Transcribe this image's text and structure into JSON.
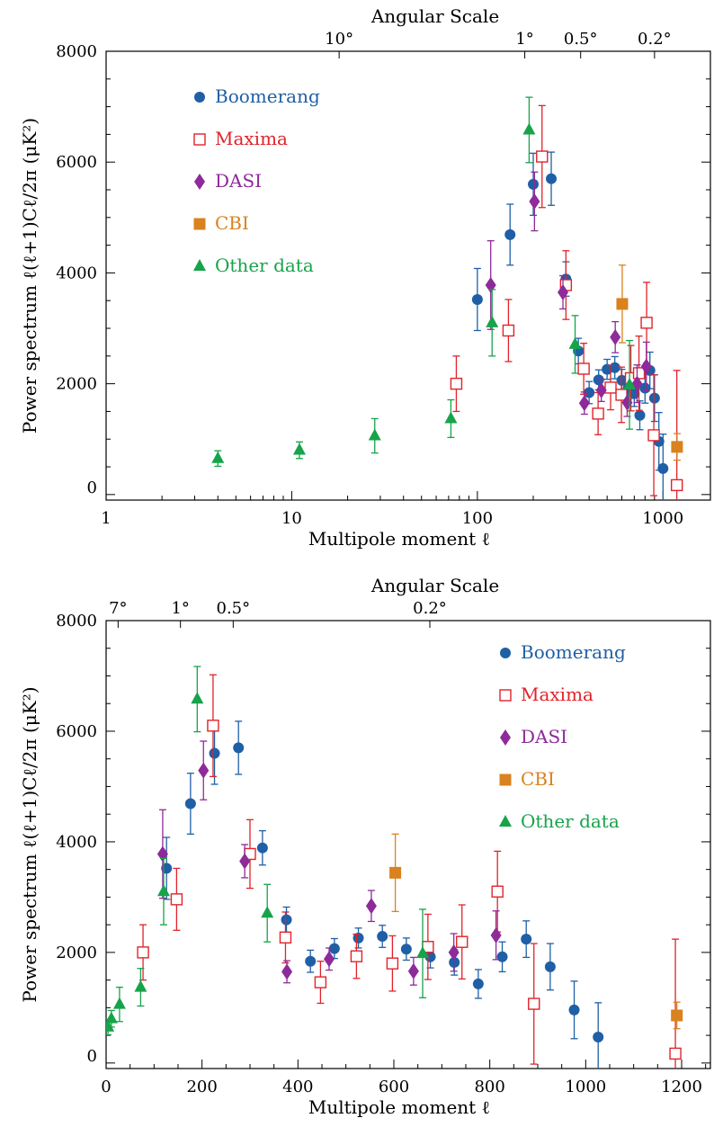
{
  "chart_data": [
    {
      "type": "scatter",
      "x_scale": "log",
      "xlabel": "Multipole moment ℓ",
      "ylabel": "Power spectrum ℓ(ℓ+1)Cℓ/2π  (μK²)",
      "top_axis_title": "Angular Scale",
      "top_tick_labels": [
        {
          "label": "10°",
          "ell": 18
        },
        {
          "label": "1°",
          "ell": 180
        },
        {
          "label": "0.5°",
          "ell": 360
        },
        {
          "label": "0.2°",
          "ell": 900
        }
      ],
      "x_tick_labels": [
        {
          "label": "1",
          "value": 1
        },
        {
          "label": "10",
          "value": 10
        },
        {
          "label": "100",
          "value": 100
        },
        {
          "label": "1000",
          "value": 1000
        }
      ],
      "y_tick_labels": [
        {
          "label": "0",
          "value": 0
        },
        {
          "label": "2000",
          "value": 2000
        },
        {
          "label": "4000",
          "value": 4000
        },
        {
          "label": "6000",
          "value": 6000
        },
        {
          "label": "8000",
          "value": 8000
        }
      ],
      "xlim": [
        1,
        1800
      ],
      "ylim": [
        -100,
        8000
      ],
      "legend_position": "top-left",
      "series": [
        {
          "name": "Boomerang",
          "color": "#1f5fa6",
          "marker": "circle",
          "points": [
            {
              "x": 100,
              "y": 3520,
              "err": 560
            },
            {
              "x": 150,
              "y": 4690,
              "err": 550
            },
            {
              "x": 200,
              "y": 5600,
              "err": 560
            },
            {
              "x": 250,
              "y": 5700,
              "err": 480
            },
            {
              "x": 300,
              "y": 3890,
              "err": 310
            },
            {
              "x": 350,
              "y": 2590,
              "err": 230
            },
            {
              "x": 400,
              "y": 1840,
              "err": 200
            },
            {
              "x": 450,
              "y": 2070,
              "err": 180
            },
            {
              "x": 500,
              "y": 2260,
              "err": 180
            },
            {
              "x": 550,
              "y": 2290,
              "err": 200
            },
            {
              "x": 600,
              "y": 2060,
              "err": 200
            },
            {
              "x": 650,
              "y": 1920,
              "err": 200
            },
            {
              "x": 700,
              "y": 1820,
              "err": 230
            },
            {
              "x": 750,
              "y": 1430,
              "err": 260
            },
            {
              "x": 800,
              "y": 1920,
              "err": 270
            },
            {
              "x": 850,
              "y": 2240,
              "err": 330
            },
            {
              "x": 900,
              "y": 1740,
              "err": 420
            },
            {
              "x": 950,
              "y": 960,
              "err": 520
            },
            {
              "x": 1000,
              "y": 470,
              "err": 620
            }
          ]
        },
        {
          "name": "Maxima",
          "color": "#e0232a",
          "marker": "open-square",
          "points": [
            {
              "x": 77,
              "y": 2000,
              "err": 500
            },
            {
              "x": 147,
              "y": 2960,
              "err": 560
            },
            {
              "x": 223,
              "y": 6100,
              "err": 920
            },
            {
              "x": 300,
              "y": 3780,
              "err": 620
            },
            {
              "x": 374,
              "y": 2270,
              "err": 460
            },
            {
              "x": 447,
              "y": 1460,
              "err": 380
            },
            {
              "x": 522,
              "y": 1930,
              "err": 400
            },
            {
              "x": 597,
              "y": 1800,
              "err": 500
            },
            {
              "x": 671,
              "y": 2100,
              "err": 590
            },
            {
              "x": 742,
              "y": 2190,
              "err": 670
            },
            {
              "x": 816,
              "y": 3100,
              "err": 730
            },
            {
              "x": 892,
              "y": 1070,
              "err": 1090
            },
            {
              "x": 1187,
              "y": 170,
              "err": 2070
            }
          ]
        },
        {
          "name": "DASI",
          "color": "#8e2a9a",
          "marker": "diamond",
          "points": [
            {
              "x": 118,
              "y": 3780,
              "err": 800
            },
            {
              "x": 203,
              "y": 5290,
              "err": 530
            },
            {
              "x": 289,
              "y": 3650,
              "err": 300
            },
            {
              "x": 377,
              "y": 1650,
              "err": 200
            },
            {
              "x": 465,
              "y": 1880,
              "err": 200
            },
            {
              "x": 553,
              "y": 2840,
              "err": 280
            },
            {
              "x": 641,
              "y": 1660,
              "err": 250
            },
            {
              "x": 725,
              "y": 2000,
              "err": 340
            },
            {
              "x": 813,
              "y": 2310,
              "err": 440
            }
          ]
        },
        {
          "name": "CBI",
          "color": "#d9821e",
          "marker": "square",
          "points": [
            {
              "x": 603,
              "y": 3440,
              "err": 700
            },
            {
              "x": 1190,
              "y": 860,
              "err": 240
            }
          ]
        },
        {
          "name": "Other data",
          "color": "#17a34a",
          "marker": "triangle",
          "points": [
            {
              "x": 4,
              "y": 650,
              "err": 140
            },
            {
              "x": 11,
              "y": 800,
              "err": 150
            },
            {
              "x": 28,
              "y": 1060,
              "err": 310
            },
            {
              "x": 72,
              "y": 1370,
              "err": 340
            },
            {
              "x": 120,
              "y": 3100,
              "err": 600
            },
            {
              "x": 190,
              "y": 6580,
              "err": 590
            },
            {
              "x": 336,
              "y": 2710,
              "err": 520
            },
            {
              "x": 660,
              "y": 1980,
              "err": 800
            }
          ]
        }
      ]
    },
    {
      "type": "scatter",
      "x_scale": "linear",
      "xlabel": "Multipole moment ℓ",
      "ylabel": "Power spectrum ℓ(ℓ+1)Cℓ/2π  (μK²)",
      "top_axis_title": "Angular Scale",
      "top_tick_labels": [
        {
          "label": "7°",
          "ell": 25
        },
        {
          "label": "1°",
          "ell": 155
        },
        {
          "label": "0.5°",
          "ell": 265
        },
        {
          "label": "0.2°",
          "ell": 675
        }
      ],
      "x_tick_labels": [
        {
          "label": "0",
          "value": 0
        },
        {
          "label": "200",
          "value": 200
        },
        {
          "label": "400",
          "value": 400
        },
        {
          "label": "600",
          "value": 600
        },
        {
          "label": "800",
          "value": 800
        },
        {
          "label": "1000",
          "value": 1000
        },
        {
          "label": "1200",
          "value": 1200
        }
      ],
      "y_tick_labels": [
        {
          "label": "0",
          "value": 0
        },
        {
          "label": "2000",
          "value": 2000
        },
        {
          "label": "4000",
          "value": 4000
        },
        {
          "label": "6000",
          "value": 6000
        },
        {
          "label": "8000",
          "value": 8000
        }
      ],
      "xlim": [
        0,
        1260
      ],
      "ylim": [
        -100,
        8000
      ],
      "legend_position": "top-right",
      "series": [
        {
          "name": "Boomerang",
          "color": "#1f5fa6",
          "marker": "circle",
          "points": [
            {
              "x": 126,
              "y": 3520,
              "err": 560
            },
            {
              "x": 176,
              "y": 4690,
              "err": 550
            },
            {
              "x": 226,
              "y": 5600,
              "err": 560
            },
            {
              "x": 276,
              "y": 5700,
              "err": 480
            },
            {
              "x": 326,
              "y": 3890,
              "err": 310
            },
            {
              "x": 376,
              "y": 2590,
              "err": 230
            },
            {
              "x": 426,
              "y": 1840,
              "err": 200
            },
            {
              "x": 476,
              "y": 2070,
              "err": 180
            },
            {
              "x": 526,
              "y": 2260,
              "err": 180
            },
            {
              "x": 576,
              "y": 2290,
              "err": 200
            },
            {
              "x": 626,
              "y": 2060,
              "err": 200
            },
            {
              "x": 676,
              "y": 1920,
              "err": 200
            },
            {
              "x": 726,
              "y": 1820,
              "err": 230
            },
            {
              "x": 776,
              "y": 1430,
              "err": 260
            },
            {
              "x": 826,
              "y": 1920,
              "err": 270
            },
            {
              "x": 876,
              "y": 2240,
              "err": 330
            },
            {
              "x": 926,
              "y": 1740,
              "err": 420
            },
            {
              "x": 976,
              "y": 960,
              "err": 520
            },
            {
              "x": 1026,
              "y": 470,
              "err": 620
            }
          ]
        },
        {
          "name": "Maxima",
          "color": "#e0232a",
          "marker": "open-square",
          "points": [
            {
              "x": 77,
              "y": 2000,
              "err": 500
            },
            {
              "x": 147,
              "y": 2960,
              "err": 560
            },
            {
              "x": 223,
              "y": 6100,
              "err": 920
            },
            {
              "x": 300,
              "y": 3780,
              "err": 620
            },
            {
              "x": 374,
              "y": 2270,
              "err": 460
            },
            {
              "x": 447,
              "y": 1460,
              "err": 380
            },
            {
              "x": 522,
              "y": 1930,
              "err": 400
            },
            {
              "x": 597,
              "y": 1800,
              "err": 500
            },
            {
              "x": 671,
              "y": 2100,
              "err": 590
            },
            {
              "x": 742,
              "y": 2190,
              "err": 670
            },
            {
              "x": 816,
              "y": 3100,
              "err": 730
            },
            {
              "x": 892,
              "y": 1070,
              "err": 1090
            },
            {
              "x": 1187,
              "y": 170,
              "err": 2070
            }
          ]
        },
        {
          "name": "DASI",
          "color": "#8e2a9a",
          "marker": "diamond",
          "points": [
            {
              "x": 118,
              "y": 3780,
              "err": 800
            },
            {
              "x": 203,
              "y": 5290,
              "err": 530
            },
            {
              "x": 289,
              "y": 3650,
              "err": 300
            },
            {
              "x": 377,
              "y": 1650,
              "err": 200
            },
            {
              "x": 465,
              "y": 1880,
              "err": 200
            },
            {
              "x": 553,
              "y": 2840,
              "err": 280
            },
            {
              "x": 641,
              "y": 1660,
              "err": 250
            },
            {
              "x": 725,
              "y": 2000,
              "err": 340
            },
            {
              "x": 813,
              "y": 2310,
              "err": 440
            }
          ]
        },
        {
          "name": "CBI",
          "color": "#d9821e",
          "marker": "square",
          "points": [
            {
              "x": 603,
              "y": 3440,
              "err": 700
            },
            {
              "x": 1190,
              "y": 860,
              "err": 240
            }
          ]
        },
        {
          "name": "Other data",
          "color": "#17a34a",
          "marker": "triangle",
          "points": [
            {
              "x": 4,
              "y": 650,
              "err": 140
            },
            {
              "x": 11,
              "y": 800,
              "err": 150
            },
            {
              "x": 28,
              "y": 1060,
              "err": 310
            },
            {
              "x": 72,
              "y": 1370,
              "err": 340
            },
            {
              "x": 120,
              "y": 3100,
              "err": 600
            },
            {
              "x": 190,
              "y": 6580,
              "err": 590
            },
            {
              "x": 336,
              "y": 2710,
              "err": 520
            },
            {
              "x": 660,
              "y": 1980,
              "err": 800
            }
          ]
        }
      ]
    }
  ]
}
